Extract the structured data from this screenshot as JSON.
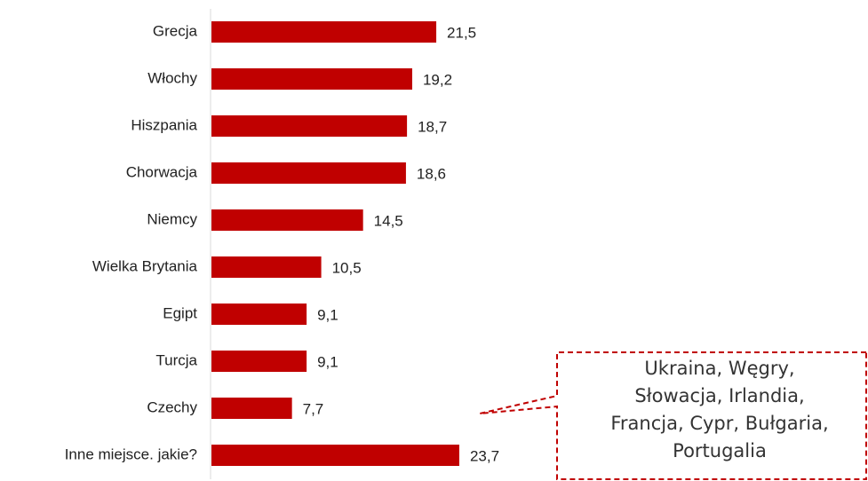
{
  "chart_data": {
    "type": "barh",
    "categories": [
      "Grecja",
      "Włochy",
      "Hiszpania",
      "Chorwacja",
      "Niemcy",
      "Wielka Brytania",
      "Egipt",
      "Turcja",
      "Czechy",
      "Inne miejsce. jakie?"
    ],
    "values": [
      21.5,
      19.2,
      18.7,
      18.6,
      14.5,
      10.5,
      9.1,
      9.1,
      7.7,
      23.7
    ],
    "value_labels": [
      "21,5",
      "19,2",
      "18,7",
      "18,6",
      "14,5",
      "10,5",
      "9,1",
      "9,1",
      "7,7",
      "23,7"
    ],
    "color": "#c00000",
    "annotation": [
      "Ukraina, Węgry,",
      "Słowacja, Irlandia,",
      "Francja, Cypr, Bułgaria,",
      "Portugalia"
    ]
  }
}
